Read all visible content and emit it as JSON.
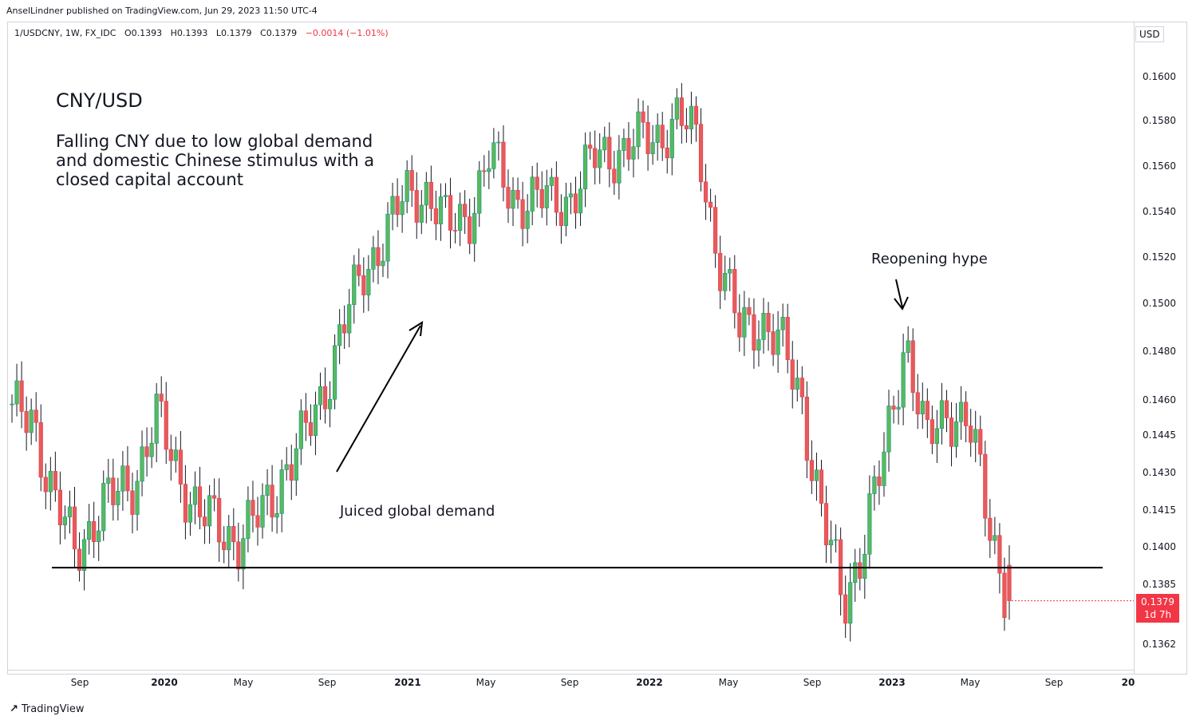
{
  "header": {
    "published": "AnselLindner published on TradingView.com, Jun 29, 2023 11:50 UTC-4"
  },
  "legend": {
    "symbol": "1/USDCNY, 1W, FX_IDC",
    "open": "O0.1393",
    "high": "H0.1393",
    "low": "L0.1379",
    "close": "C0.1379",
    "change": "−0.0014 (−1.01%)"
  },
  "axis": {
    "currency": "USD",
    "y_ticks": [
      "0.1600",
      "0.1580",
      "0.1560",
      "0.1540",
      "0.1520",
      "0.1500",
      "0.1480",
      "0.1460",
      "0.1445",
      "0.1430",
      "0.1415",
      "0.1400",
      "0.1385",
      "0.1362"
    ],
    "x_ticks": [
      {
        "label": "Sep",
        "bold": false
      },
      {
        "label": "2020",
        "bold": true
      },
      {
        "label": "May",
        "bold": false
      },
      {
        "label": "Sep",
        "bold": false
      },
      {
        "label": "2021",
        "bold": true
      },
      {
        "label": "May",
        "bold": false
      },
      {
        "label": "Sep",
        "bold": false
      },
      {
        "label": "2022",
        "bold": true
      },
      {
        "label": "May",
        "bold": false
      },
      {
        "label": "Sep",
        "bold": false
      },
      {
        "label": "2023",
        "bold": true
      },
      {
        "label": "May",
        "bold": false
      },
      {
        "label": "Sep",
        "bold": false
      },
      {
        "label": "20",
        "bold": true
      }
    ],
    "last_price": "0.1379",
    "countdown": "1d 7h"
  },
  "annotations": {
    "title": "CNY/USD",
    "description": "Falling CNY due to low global demand and domestic Chinese stimulus with a closed capital account",
    "juiced": "Juiced global demand",
    "reopening": "Reopening hype"
  },
  "colors": {
    "up": "#089981",
    "down": "#f23645",
    "up_fill": "#5cb85c",
    "down_fill": "#e25d5d"
  },
  "brand": {
    "name": "TradingView"
  },
  "chart_data": {
    "type": "candlestick",
    "title": "CNY/USD",
    "interval": "1W",
    "support_level": 0.1392,
    "ylim": [
      0.1352,
      0.161
    ],
    "x_start": "2019-06",
    "x_end": "2023-06",
    "series": [
      {
        "name": "1/USDCNY",
        "close_points": [
          [
            "2019-06",
            0.1453
          ],
          [
            "2019-07",
            0.1455
          ],
          [
            "2019-08",
            0.1418
          ],
          [
            "2019-09",
            0.14
          ],
          [
            "2019-10",
            0.1412
          ],
          [
            "2019-11",
            0.1421
          ],
          [
            "2019-12",
            0.143
          ],
          [
            "2020-01",
            0.1452
          ],
          [
            "2020-02",
            0.1432
          ],
          [
            "2020-03",
            0.1412
          ],
          [
            "2020-04",
            0.1409
          ],
          [
            "2020-05",
            0.1403
          ],
          [
            "2020-06",
            0.1413
          ],
          [
            "2020-07",
            0.143
          ],
          [
            "2020-08",
            0.1442
          ],
          [
            "2020-09",
            0.1465
          ],
          [
            "2020-10",
            0.1492
          ],
          [
            "2020-11",
            0.1515
          ],
          [
            "2020-12",
            0.1532
          ],
          [
            "2021-01",
            0.1547
          ],
          [
            "2021-02",
            0.155
          ],
          [
            "2021-03",
            0.1532
          ],
          [
            "2021-04",
            0.154
          ],
          [
            "2021-05",
            0.1565
          ],
          [
            "2021-06",
            0.1547
          ],
          [
            "2021-07",
            0.1546
          ],
          [
            "2021-08",
            0.1544
          ],
          [
            "2021-09",
            0.1548
          ],
          [
            "2021-10",
            0.1563
          ],
          [
            "2021-11",
            0.1567
          ],
          [
            "2021-12",
            0.157
          ],
          [
            "2022-01",
            0.1573
          ],
          [
            "2022-02",
            0.1582
          ],
          [
            "2022-03",
            0.1571
          ],
          [
            "2022-04",
            0.152
          ],
          [
            "2022-05",
            0.1488
          ],
          [
            "2022-06",
            0.1495
          ],
          [
            "2022-07",
            0.1482
          ],
          [
            "2022-08",
            0.1461
          ],
          [
            "2022-09",
            0.1412
          ],
          [
            "2022-10",
            0.1377
          ],
          [
            "2022-11",
            0.1404
          ],
          [
            "2022-12",
            0.1436
          ],
          [
            "2023-01",
            0.1488
          ],
          [
            "2023-02",
            0.144
          ],
          [
            "2023-03",
            0.1457
          ],
          [
            "2023-04",
            0.1451
          ],
          [
            "2023-05",
            0.1411
          ],
          [
            "2023-06",
            0.1379
          ]
        ]
      }
    ]
  }
}
